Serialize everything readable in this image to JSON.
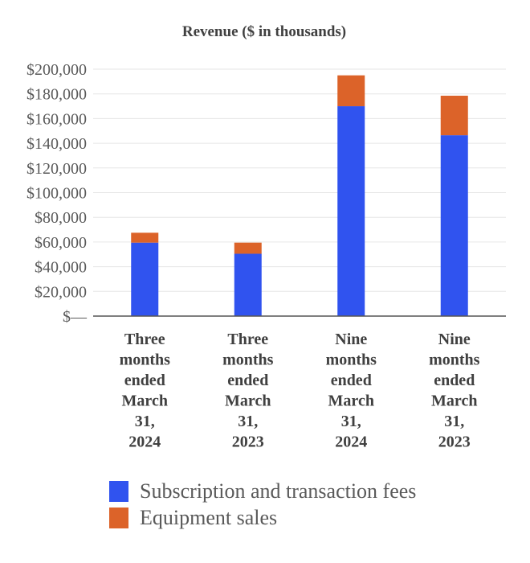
{
  "chart_data": {
    "type": "bar",
    "stacked": true,
    "title": "Revenue ($ in thousands)",
    "xlabel": "",
    "ylabel": "",
    "categories": [
      [
        "Three",
        "months",
        "ended",
        "March",
        "31,",
        "2024"
      ],
      [
        "Three",
        "months",
        "ended",
        "March",
        "31,",
        "2023"
      ],
      [
        "Nine",
        "months",
        "ended",
        "March",
        "31,",
        "2024"
      ],
      [
        "Nine",
        "months",
        "ended",
        "March",
        "31,",
        "2023"
      ]
    ],
    "series": [
      {
        "name": "Subscription and transaction fees",
        "color": "#3053ef",
        "values": [
          59500,
          50500,
          170000,
          146500
        ]
      },
      {
        "name": "Equipment sales",
        "color": "#dc6329",
        "values": [
          8000,
          9000,
          25000,
          32000
        ]
      }
    ],
    "ylim": [
      0,
      200000
    ],
    "ytick_values": [
      0,
      20000,
      40000,
      60000,
      80000,
      100000,
      120000,
      140000,
      160000,
      180000,
      200000
    ],
    "ytick_labels": [
      "$—",
      "$20,000",
      "$40,000",
      "$60,000",
      "$80,000",
      "$100,000",
      "$120,000",
      "$140,000",
      "$160,000",
      "$180,000",
      "$200,000"
    ],
    "grid": true,
    "legend_position": "bottom"
  }
}
